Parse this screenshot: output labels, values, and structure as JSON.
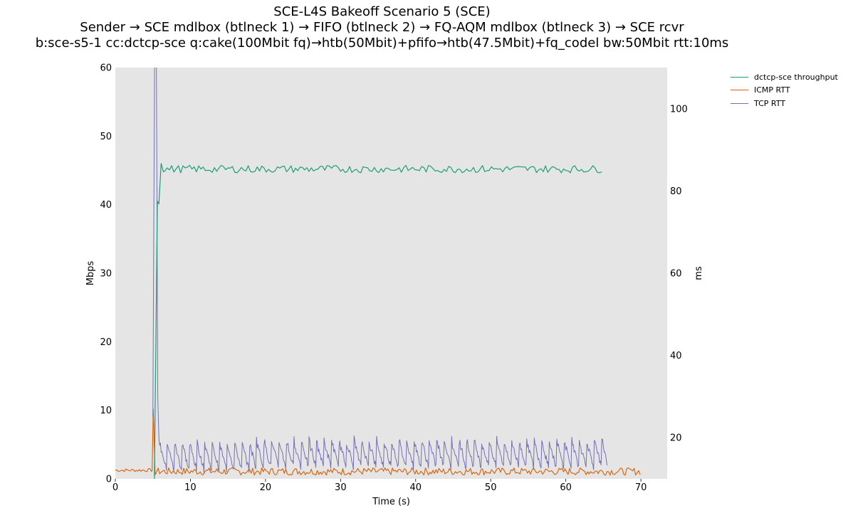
{
  "title_lines": [
    "SCE-L4S Bakeoff Scenario 5 (SCE)",
    "Sender → SCE mdlbox (btlneck 1) → FIFO (btlneck 2) → FQ-AQM mdlbox (btlneck 3) → SCE rcvr",
    "b:sce-s5-1 cc:dctcp-sce q:cake(100Mbit fq)→htb(50Mbit)+pfifo→htb(47.5Mbit)+fq_codel bw:50Mbit rtt:10ms"
  ],
  "chart_data": {
    "type": "line",
    "title": "SCE-L4S Bakeoff Scenario 5 (SCE)",
    "xlabel": "Time (s)",
    "ylabel_left": "Mbps",
    "ylabel_right": "ms",
    "xlim": [
      0,
      73.5
    ],
    "ylim_left": [
      0,
      60
    ],
    "ylim_right": [
      10,
      110
    ],
    "x_ticks": [
      0,
      10,
      20,
      30,
      40,
      50,
      60,
      70
    ],
    "y_ticks_left": [
      0,
      10,
      20,
      30,
      40,
      50,
      60
    ],
    "y_ticks_right": [
      20,
      40,
      60,
      80,
      100
    ],
    "grid": false,
    "background": "#e5e5e5",
    "legend_position": "outside-right-top",
    "series": [
      {
        "name": "dctcp-sce throughput",
        "axis": "left",
        "color": "#1b9e77",
        "description": "ramp to ~40 Mbps around 5.5 s, then steady ~45 Mbps with small jitter until ~65 s",
        "points": [
          [
            5.2,
            0
          ],
          [
            5.4,
            20
          ],
          [
            5.6,
            40.5
          ],
          [
            5.8,
            40.1
          ],
          [
            6.1,
            46.0
          ],
          [
            6.4,
            44.8
          ],
          [
            65.0,
            45.0
          ]
        ],
        "steady_mean": 45.2,
        "steady_range": [
          6.3,
          65.0
        ]
      },
      {
        "name": "ICMP RTT",
        "axis": "right",
        "color": "#d95f02",
        "description": "baseline ~12 ms, spike ~27 ms at 5 s, then ~11–13 ms until 70 s",
        "points": [
          [
            0,
            12.1
          ],
          [
            4.9,
            12.0
          ],
          [
            5.05,
            27.0
          ],
          [
            5.3,
            11.0
          ],
          [
            70.0,
            12.3
          ]
        ],
        "baseline": 11.8,
        "range": [
          0,
          70.0
        ]
      },
      {
        "name": "TCP RTT",
        "axis": "right",
        "color": "#7570b3",
        "description": "initial spike off the top of the axis around 5–5.7 s, then sawtooth between ~12 ms and ~20 ms until ~65.5 s",
        "points": [
          [
            5.0,
            25
          ],
          [
            5.25,
            120
          ],
          [
            5.45,
            120
          ],
          [
            5.65,
            30
          ],
          [
            5.8,
            20.0
          ]
        ],
        "sawtooth_min": 12.3,
        "sawtooth_max": 19.8,
        "sawtooth_period_s": 1.0,
        "range": [
          5.8,
          65.5
        ]
      }
    ]
  }
}
